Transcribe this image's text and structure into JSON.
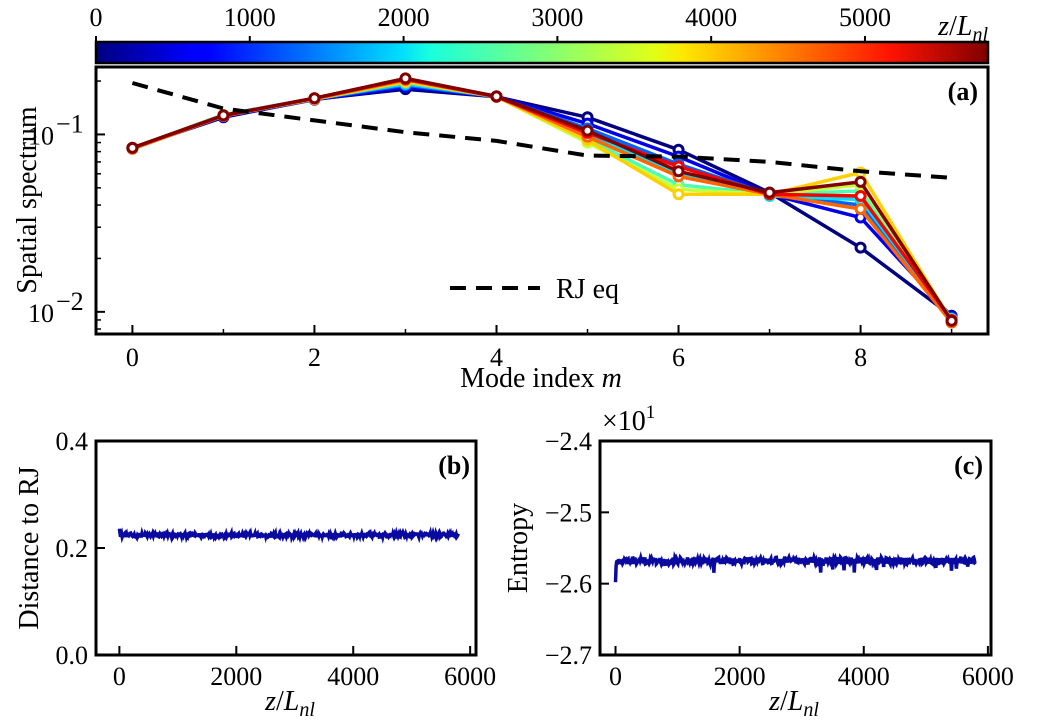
{
  "chart_data": [
    {
      "panel": "a",
      "panel_label": "(a)",
      "type": "line",
      "yscale": "log",
      "xlabel_text": "Mode index ",
      "xlabel_var": "m",
      "ylabel": "Spatial spectrum",
      "xlim": [
        -0.4,
        9.4
      ],
      "ylim": [
        0.0075,
        0.24
      ],
      "x": [
        0,
        1,
        2,
        3,
        4,
        5,
        6,
        7,
        8,
        9
      ],
      "x_tick_labels": [
        "0",
        "2",
        "4",
        "6",
        "8"
      ],
      "x_tick_values": [
        0,
        2,
        4,
        6,
        8
      ],
      "y_tick_labels": [
        {
          "value": 0.1,
          "base": "10",
          "exp": "−1"
        },
        {
          "value": 0.01,
          "base": "10",
          "exp": "−2"
        }
      ],
      "colorbar": {
        "colormap": "jet",
        "range": [
          0,
          5800
        ],
        "ticks": [
          "0",
          "1000",
          "2000",
          "3000",
          "4000",
          "5000"
        ],
        "tick_values": [
          0,
          1000,
          2000,
          3000,
          4000,
          5000
        ],
        "label_var": "z",
        "label_sep": "/",
        "label_L": "L",
        "label_sub": "nl"
      },
      "series": [
        {
          "z": 0,
          "values": [
            0.084,
            0.125,
            0.158,
            0.18,
            0.163,
            0.125,
            0.082,
            0.047,
            0.023,
            0.0095
          ]
        },
        {
          "z": 600,
          "values": [
            0.084,
            0.126,
            0.157,
            0.185,
            0.164,
            0.115,
            0.075,
            0.046,
            0.034,
            0.0094
          ]
        },
        {
          "z": 1300,
          "values": [
            0.084,
            0.127,
            0.158,
            0.19,
            0.163,
            0.108,
            0.068,
            0.046,
            0.04,
            0.0092
          ]
        },
        {
          "z": 2000,
          "values": [
            0.083,
            0.128,
            0.159,
            0.193,
            0.164,
            0.1,
            0.06,
            0.045,
            0.043,
            0.009
          ]
        },
        {
          "z": 2600,
          "values": [
            0.084,
            0.129,
            0.16,
            0.197,
            0.164,
            0.094,
            0.052,
            0.046,
            0.048,
            0.0091
          ]
        },
        {
          "z": 3300,
          "values": [
            0.083,
            0.128,
            0.159,
            0.2,
            0.163,
            0.09,
            0.049,
            0.046,
            0.052,
            0.009
          ]
        },
        {
          "z": 3900,
          "values": [
            0.084,
            0.128,
            0.158,
            0.198,
            0.163,
            0.093,
            0.046,
            0.046,
            0.061,
            0.0088
          ]
        },
        {
          "z": 4500,
          "values": [
            0.083,
            0.127,
            0.159,
            0.203,
            0.164,
            0.097,
            0.058,
            0.046,
            0.038,
            0.0087
          ]
        },
        {
          "z": 5100,
          "values": [
            0.084,
            0.128,
            0.16,
            0.205,
            0.163,
            0.102,
            0.066,
            0.046,
            0.045,
            0.009
          ]
        },
        {
          "z": 5800,
          "values": [
            0.084,
            0.128,
            0.16,
            0.207,
            0.164,
            0.105,
            0.062,
            0.047,
            0.054,
            0.0089
          ]
        }
      ],
      "reference": {
        "name": "RJ eq",
        "style": "dashed",
        "values": [
          0.195,
          0.14,
          0.12,
          0.103,
          0.092,
          0.076,
          0.075,
          0.07,
          0.062,
          0.057
        ]
      }
    },
    {
      "panel": "b",
      "panel_label": "(b)",
      "type": "line",
      "ylabel": "Distance to RJ",
      "xlabel_var": "z",
      "xlabel_sep": "/",
      "xlabel_L": "L",
      "xlabel_sub": "nl",
      "xlim": [
        -400,
        6100
      ],
      "ylim": [
        0.0,
        0.4
      ],
      "x_ticks": [
        "0",
        "2000",
        "4000",
        "6000"
      ],
      "x_tick_values": [
        0,
        2000,
        4000,
        6000
      ],
      "y_ticks": [
        "0.0",
        "0.2",
        "0.4"
      ],
      "y_tick_values": [
        0.0,
        0.2,
        0.4
      ],
      "color": "#0a0aa0",
      "x_range": [
        0,
        5800
      ],
      "base_value": 0.224,
      "noise_amplitude": 0.004,
      "start_transient": [
        0.236,
        0.229,
        0.221
      ]
    },
    {
      "panel": "c",
      "panel_label": "(c)",
      "type": "line",
      "ylabel": "Entropy",
      "xlabel_var": "z",
      "xlabel_sep": "/",
      "xlabel_L": "L",
      "xlabel_sub": "nl",
      "offset_base": "×10",
      "offset_exp": "1",
      "xlim": [
        -250,
        6050
      ],
      "ylim": [
        -2.7,
        -2.4
      ],
      "x_ticks": [
        "0",
        "2000",
        "4000",
        "6000"
      ],
      "x_tick_values": [
        0,
        2000,
        4000,
        6000
      ],
      "y_ticks": [
        "−2.4",
        "−2.5",
        "−2.6",
        "−2.7"
      ],
      "y_tick_values": [
        -2.4,
        -2.5,
        -2.6,
        -2.7
      ],
      "color": "#0a0aa0",
      "x_range": [
        0,
        5800
      ],
      "base_value": -2.568,
      "noise_amplitude": 0.005,
      "dip_amplitude": 0.02,
      "start_transient": [
        -2.598,
        -2.575,
        -2.569
      ]
    }
  ]
}
